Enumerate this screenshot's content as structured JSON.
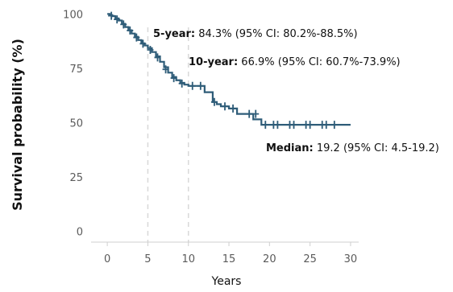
{
  "chart_data": {
    "type": "line",
    "xlabel": "Years",
    "ylabel": "Survival probability (%)",
    "xlim": [
      -2,
      31
    ],
    "ylim": [
      -5,
      102
    ],
    "xticks": [
      0,
      5,
      10,
      15,
      20,
      25,
      30
    ],
    "yticks": [
      0,
      25,
      50,
      75,
      100
    ],
    "color": "#2e5c78",
    "reference_lines_x": [
      5,
      10
    ],
    "reference_line_color": "#d9d9d9",
    "series": [
      {
        "x": [
          0,
          0.3,
          0.6,
          1.0,
          1.4,
          1.8,
          2.2,
          2.6,
          3.0,
          3.4,
          3.8,
          4.2,
          4.6,
          5.0,
          5.5,
          6.0,
          6.5,
          7.0,
          7.5,
          8.0,
          8.5,
          9.0,
          9.5,
          10.0,
          11.0,
          12.0,
          13.0,
          13.5,
          14.0,
          15.0,
          16.0,
          17.0,
          18.0,
          18.5,
          19.0,
          19.2,
          30.0
        ],
        "y": [
          100,
          99.5,
          99,
          98,
          97,
          95.5,
          94,
          92.5,
          91,
          89.5,
          88,
          86.5,
          85.5,
          84.3,
          82.5,
          80.5,
          78,
          75.5,
          73,
          71,
          69.5,
          68.3,
          67.5,
          66.9,
          66.9,
          64,
          59.5,
          58.5,
          57.5,
          56.5,
          54,
          54,
          51.5,
          51.5,
          49,
          49,
          49
        ]
      }
    ],
    "censor_marks": {
      "x": [
        0.5,
        1.2,
        2.0,
        2.8,
        3.6,
        4.4,
        5.3,
        6.2,
        7.2,
        8.2,
        9.2,
        10.5,
        11.5,
        13.2,
        14.5,
        15.5,
        17.5,
        18.3,
        19.5,
        20.5,
        21.0,
        22.5,
        23.0,
        24.5,
        25.0,
        26.5,
        27.0,
        28.0
      ],
      "y": [
        99.2,
        97.5,
        95.2,
        92.4,
        89.2,
        86.3,
        83.5,
        80,
        74.5,
        70.5,
        68,
        66.9,
        66.9,
        59.5,
        57.5,
        56.5,
        54,
        54,
        49,
        49,
        49,
        49,
        49,
        49,
        49,
        49,
        49,
        49
      ]
    },
    "annotations": [
      {
        "bold": "5-year:",
        "text": " 84.3% (95% CI: 80.2%-88.5%)"
      },
      {
        "bold": "10-year:",
        "text": " 66.9% (95% CI: 60.7%-73.9%)"
      },
      {
        "bold": "Median:",
        "text": " 19.2 (95% CI: 4.5-19.2)"
      }
    ]
  }
}
